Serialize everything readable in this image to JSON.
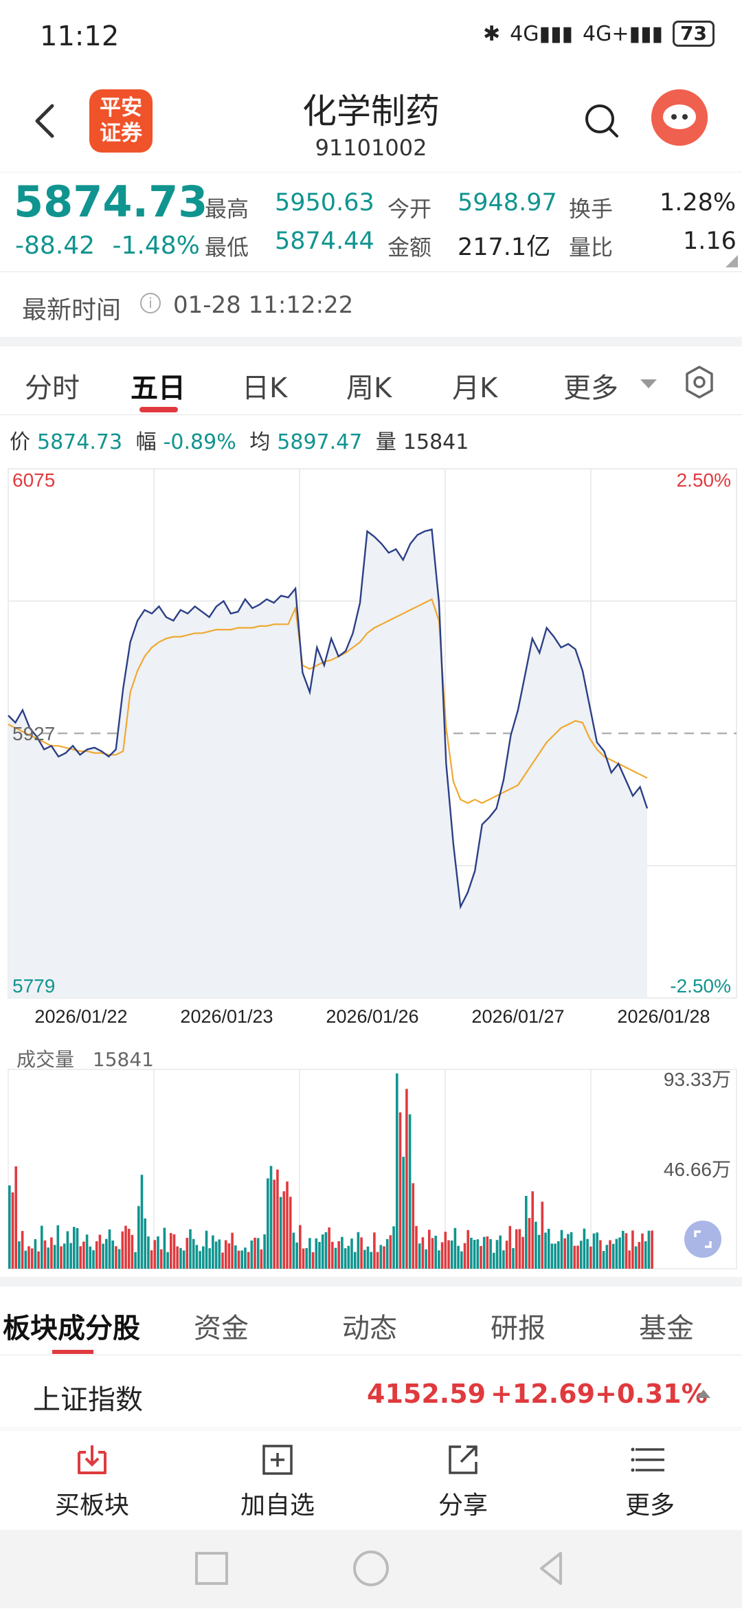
{
  "status": {
    "time": "11:12",
    "net1": "4G",
    "net2": "4G+",
    "battery": "73"
  },
  "header": {
    "logo_line1": "平安",
    "logo_line2": "证券",
    "title": "化学制药",
    "code": "91101002"
  },
  "quote": {
    "price": "5874.73",
    "change": "-88.42",
    "change_pct": "-1.48%",
    "high_label": "最高",
    "high": "5950.63",
    "open_label": "今开",
    "open": "5948.97",
    "turnover_label": "换手",
    "turnover": "1.28%",
    "low_label": "最低",
    "low": "5874.44",
    "amount_label": "金额",
    "amount": "217.1亿",
    "vol_ratio_label": "量比",
    "vol_ratio": "1.16"
  },
  "latest": {
    "label": "最新时间",
    "value": "01-28 11:12:22"
  },
  "chart_tabs": [
    "分时",
    "五日",
    "日K",
    "周K",
    "月K",
    "更多"
  ],
  "readout": {
    "price_label": "价",
    "price": "5874.73",
    "range_label": "幅",
    "range": "-0.89%",
    "avg_label": "均",
    "avg": "5897.47",
    "vol_label": "量",
    "vol": "15841"
  },
  "colors": {
    "teal": "#10948f",
    "red": "#e03a3e",
    "price_line": "#2b3f86",
    "avg_line": "#f0a830"
  },
  "chart_data": [
    {
      "type": "line",
      "title": "",
      "x_labels": [
        "2026/01/22",
        "2026/01/23",
        "2026/01/26",
        "2026/01/27",
        "2026/01/28"
      ],
      "ylim": [
        5779,
        6075
      ],
      "y_left_labels": {
        "top": "6075",
        "mid": "5927",
        "bottom": "5779"
      },
      "y_right_labels": {
        "top": "2.50%",
        "bottom": "-2.50%"
      },
      "reference_line": 5927,
      "grid": true,
      "series": [
        {
          "name": "",
          "values": [
            5937,
            5933,
            5940,
            5930,
            5925,
            5918,
            5920,
            5914,
            5916,
            5920,
            5915,
            5918,
            5919,
            5917,
            5914,
            5918,
            5952,
            5978,
            5990,
            5996,
            5994,
            5998,
            5992,
            5990,
            5996,
            5994,
            5998,
            5995,
            5992,
            5998,
            6001,
            5994,
            5995,
            6002,
            5997,
            5999,
            6002,
            6000,
            6004,
            6003,
            6008,
            5961,
            5950,
            5975,
            5965,
            5980,
            5970,
            5973,
            5983,
            6000,
            6040,
            6037,
            6033,
            6028,
            6030,
            6024,
            6033,
            6038,
            6040,
            6041,
            6000,
            5910,
            5865,
            5830,
            5838,
            5850,
            5876,
            5880,
            5885,
            5901,
            5926,
            5940,
            5960,
            5980,
            5972,
            5986,
            5981,
            5975,
            5977,
            5974,
            5962,
            5942,
            5922,
            5917,
            5905,
            5910,
            5901,
            5892,
            5897,
            5885
          ]
        },
        {
          "name": "",
          "values": [
            5932,
            5930,
            5928,
            5926,
            5924,
            5922,
            5920,
            5920,
            5919,
            5918,
            5917,
            5917,
            5916,
            5916,
            5915,
            5915,
            5917,
            5950,
            5962,
            5970,
            5975,
            5978,
            5980,
            5981,
            5981,
            5982,
            5983,
            5983,
            5984,
            5985,
            5985,
            5985,
            5986,
            5986,
            5986,
            5987,
            5987,
            5988,
            5988,
            5988,
            5997,
            5965,
            5963,
            5965,
            5967,
            5968,
            5970,
            5972,
            5975,
            5978,
            5983,
            5986,
            5988,
            5990,
            5992,
            5994,
            5996,
            5998,
            6000,
            6002,
            5990,
            5930,
            5900,
            5890,
            5888,
            5890,
            5888,
            5890,
            5892,
            5894,
            5896,
            5898,
            5904,
            5910,
            5916,
            5922,
            5926,
            5930,
            5932,
            5934,
            5933,
            5924,
            5918,
            5914,
            5912,
            5910,
            5908,
            5906,
            5904,
            5902
          ]
        }
      ]
    },
    {
      "type": "bar",
      "title": "成交量",
      "current_volume": "15841",
      "y_labels": {
        "top": "93.33万",
        "mid": "46.66万"
      },
      "ylim": [
        0,
        93.33
      ]
    }
  ],
  "info_tabs": [
    "板块成分股",
    "资金",
    "动态",
    "研报",
    "基金"
  ],
  "index_row": {
    "name": "上证指数",
    "value": "4152.59",
    "change": "+12.69",
    "change_pct": "+0.31%"
  },
  "actions": [
    {
      "label": "买板块",
      "icon": "buy-download-icon"
    },
    {
      "label": "加自选",
      "icon": "add-square-icon"
    },
    {
      "label": "分享",
      "icon": "share-arrow-icon"
    },
    {
      "label": "更多",
      "icon": "menu-lines-icon"
    }
  ]
}
